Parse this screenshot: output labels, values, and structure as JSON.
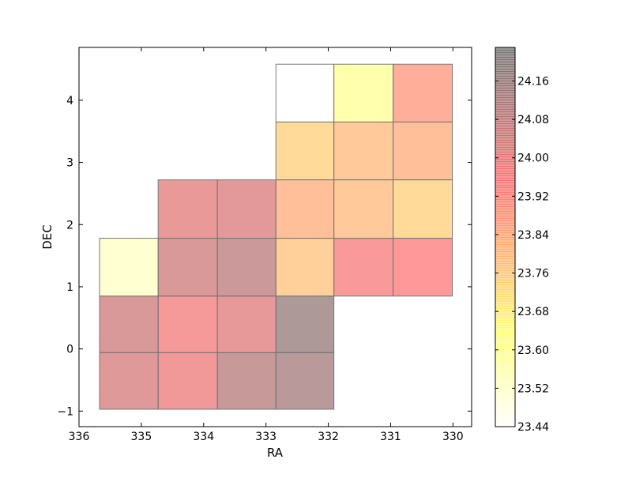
{
  "chart_data": {
    "type": "heatmap",
    "title": "",
    "xlabel": "RA",
    "ylabel": "DEC",
    "xlim": [
      336,
      329.7
    ],
    "ylim": [
      -1.25,
      4.85
    ],
    "x_inverted": true,
    "xticks": [
      336,
      335,
      334,
      333,
      332,
      331,
      330
    ],
    "yticks": [
      -1,
      0,
      1,
      2,
      3,
      4
    ],
    "xtick_labels": [
      "336",
      "335",
      "334",
      "333",
      "332",
      "331",
      "330"
    ],
    "ytick_labels": [
      "−1",
      "0",
      "1",
      "2",
      "3",
      "4"
    ],
    "colorbar": {
      "colormap": "hot_r",
      "alpha": 0.4,
      "range": [
        23.44,
        24.23
      ],
      "ticks": [
        23.44,
        23.52,
        23.6,
        23.68,
        23.76,
        23.84,
        23.92,
        24.0,
        24.08,
        24.16
      ],
      "tick_labels": [
        "23.44",
        "23.52",
        "23.60",
        "23.68",
        "23.76",
        "23.84",
        "23.92",
        "24.00",
        "24.08",
        "24.16"
      ]
    },
    "cells": [
      {
        "ra": [
          335.67,
          334.73
        ],
        "dec": [
          -0.97,
          -0.06
        ],
        "value": 24.03
      },
      {
        "ra": [
          335.67,
          334.73
        ],
        "dec": [
          -0.06,
          0.85
        ],
        "value": 24.05
      },
      {
        "ra": [
          335.67,
          334.73
        ],
        "dec": [
          0.85,
          1.78
        ],
        "value": 23.53
      },
      {
        "ra": [
          334.73,
          333.78
        ],
        "dec": [
          -0.97,
          -0.06
        ],
        "value": 23.98
      },
      {
        "ra": [
          334.73,
          333.78
        ],
        "dec": [
          -0.06,
          0.85
        ],
        "value": 23.97
      },
      {
        "ra": [
          334.73,
          333.78
        ],
        "dec": [
          0.85,
          1.78
        ],
        "value": 24.05
      },
      {
        "ra": [
          334.73,
          333.78
        ],
        "dec": [
          1.78,
          2.72
        ],
        "value": 24.0
      },
      {
        "ra": [
          333.78,
          332.84
        ],
        "dec": [
          -0.97,
          -0.06
        ],
        "value": 24.1
      },
      {
        "ra": [
          333.78,
          332.84
        ],
        "dec": [
          -0.06,
          0.85
        ],
        "value": 24.01
      },
      {
        "ra": [
          333.78,
          332.84
        ],
        "dec": [
          0.85,
          1.78
        ],
        "value": 24.09
      },
      {
        "ra": [
          333.78,
          332.84
        ],
        "dec": [
          1.78,
          2.72
        ],
        "value": 24.02
      },
      {
        "ra": [
          332.84,
          331.91
        ],
        "dec": [
          -0.97,
          -0.06
        ],
        "value": 24.14
      },
      {
        "ra": [
          332.84,
          331.91
        ],
        "dec": [
          -0.06,
          0.85
        ],
        "value": 24.17
      },
      {
        "ra": [
          332.84,
          331.91
        ],
        "dec": [
          0.85,
          1.78
        ],
        "value": 23.78
      },
      {
        "ra": [
          332.84,
          331.91
        ],
        "dec": [
          1.78,
          2.72
        ],
        "value": 23.83
      },
      {
        "ra": [
          332.84,
          331.91
        ],
        "dec": [
          2.72,
          3.65
        ],
        "value": 23.75
      },
      {
        "ra": [
          332.84,
          331.91
        ],
        "dec": [
          3.65,
          4.58
        ],
        "value": 23.44
      },
      {
        "ra": [
          331.91,
          330.96
        ],
        "dec": [
          0.85,
          1.78
        ],
        "value": 23.96
      },
      {
        "ra": [
          331.91,
          330.96
        ],
        "dec": [
          1.78,
          2.72
        ],
        "value": 23.8
      },
      {
        "ra": [
          331.91,
          330.96
        ],
        "dec": [
          2.72,
          3.65
        ],
        "value": 23.8
      },
      {
        "ra": [
          331.91,
          330.96
        ],
        "dec": [
          3.65,
          4.58
        ],
        "value": 23.6
      },
      {
        "ra": [
          330.96,
          330.01
        ],
        "dec": [
          0.85,
          1.78
        ],
        "value": 23.94
      },
      {
        "ra": [
          330.96,
          330.01
        ],
        "dec": [
          1.78,
          2.72
        ],
        "value": 23.75
      },
      {
        "ra": [
          330.96,
          330.01
        ],
        "dec": [
          2.72,
          3.65
        ],
        "value": 23.83
      },
      {
        "ra": [
          330.96,
          330.01
        ],
        "dec": [
          3.65,
          4.58
        ],
        "value": 23.88
      }
    ]
  }
}
